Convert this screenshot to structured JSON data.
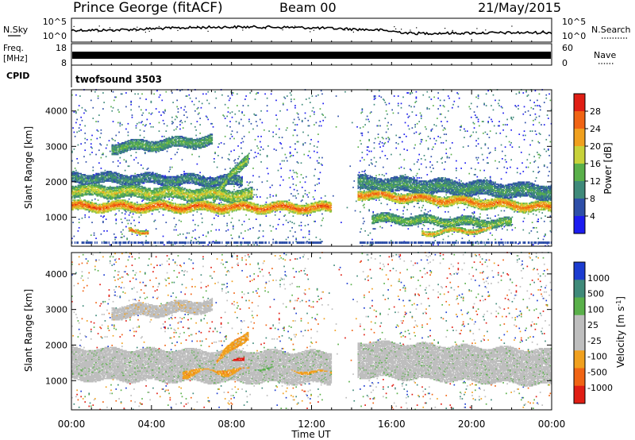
{
  "header": {
    "station": "Prince George (fitACF)",
    "beam": "Beam 00",
    "date": "21/May/2015"
  },
  "top_panels": {
    "nsky": {
      "label": "N.Sky",
      "left_ticks": [
        "10^5",
        "10^0"
      ],
      "right_ticks": [
        "10^5",
        "10^0"
      ],
      "right_label": "N.Search"
    },
    "freq": {
      "label_line1": "Freq.",
      "label_line2": "[MHz]",
      "left_ticks": [
        "18",
        "8"
      ],
      "right_ticks": [
        "60",
        "0"
      ],
      "right_label": "Nave"
    },
    "cpid": {
      "label": "CPID",
      "program": "twofsound 3503"
    }
  },
  "colors": {
    "power_scale": [
      "#1c1cf0",
      "#2e4fa8",
      "#3f8a7a",
      "#5ab04a",
      "#c8d23a",
      "#f0a01e",
      "#f06414",
      "#e01e14"
    ],
    "velocity_scale": [
      "#e01e14",
      "#f06414",
      "#f0a01e",
      "#bebebe",
      "#bebebe",
      "#5ab04a",
      "#3f8a7a",
      "#1c3cd0"
    ]
  },
  "chart_data": [
    {
      "type": "heatmap",
      "quantity": "Power",
      "ylabel": "Slant Range [km]",
      "xlabel": "Time UT",
      "xlim": [
        0,
        24
      ],
      "ylim": [
        180,
        4600
      ],
      "x_ticks": [
        "00:00",
        "04:00",
        "08:00",
        "12:00",
        "16:00",
        "20:00",
        "00:00"
      ],
      "y_ticks": [
        1000,
        2000,
        3000,
        4000
      ],
      "colorbar": {
        "label": "Power [dB]",
        "ticks": [
          4,
          8,
          12,
          16,
          20,
          24,
          28
        ],
        "range": [
          0,
          32
        ]
      },
      "bands": [
        {
          "t0": 0.0,
          "t1": 13.0,
          "center_start": 1300,
          "center_end": 1250,
          "width": 280,
          "power": 27
        },
        {
          "t0": 0.0,
          "t1": 9.0,
          "center_start": 1750,
          "center_end": 1600,
          "width": 350,
          "power": 19
        },
        {
          "t0": 0.0,
          "t1": 8.5,
          "center_start": 2100,
          "center_end": 2000,
          "width": 300,
          "power": 11
        },
        {
          "t0": 7.0,
          "t1": 8.8,
          "center_start": 1500,
          "center_end": 2700,
          "width": 300,
          "power": 17
        },
        {
          "t0": 2.0,
          "t1": 7.0,
          "center_start": 2950,
          "center_end": 3150,
          "width": 300,
          "power": 14
        },
        {
          "t0": 2.8,
          "t1": 3.8,
          "center_start": 600,
          "center_end": 600,
          "width": 120,
          "power": 27
        },
        {
          "t0": 14.3,
          "t1": 24.0,
          "center_start": 1650,
          "center_end": 1250,
          "width": 280,
          "power": 26
        },
        {
          "t0": 14.3,
          "t1": 24.0,
          "center_start": 1950,
          "center_end": 1700,
          "width": 420,
          "power": 12
        },
        {
          "t0": 15.0,
          "t1": 22.0,
          "center_start": 950,
          "center_end": 800,
          "width": 260,
          "power": 16
        },
        {
          "t0": 17.5,
          "t1": 21.0,
          "center_start": 550,
          "center_end": 650,
          "width": 150,
          "power": 23
        }
      ]
    },
    {
      "type": "heatmap",
      "quantity": "Velocity",
      "ylabel": "Slant Range [km]",
      "xlabel": "Time UT",
      "xlim": [
        0,
        24
      ],
      "ylim": [
        180,
        4600
      ],
      "x_ticks": [
        "00:00",
        "04:00",
        "08:00",
        "12:00",
        "16:00",
        "20:00",
        "00:00"
      ],
      "y_ticks": [
        1000,
        2000,
        3000,
        4000
      ],
      "colorbar": {
        "label": "Velocity [m s^-1]",
        "ticks": [
          "1000",
          "500",
          "100",
          "25",
          "-25",
          "-100",
          "-500",
          "-1000"
        ]
      },
      "bands": [
        {
          "t0": 0.0,
          "t1": 13.0,
          "center_start": 1450,
          "center_end": 1350,
          "width": 900,
          "velocity_class": 4
        },
        {
          "t0": 14.3,
          "t1": 24.0,
          "center_start": 1600,
          "center_end": 1350,
          "width": 1000,
          "velocity_class": 4
        },
        {
          "t0": 5.5,
          "t1": 9.0,
          "center_start": 1250,
          "center_end": 1300,
          "width": 350,
          "velocity_class": 2
        },
        {
          "t0": 7.2,
          "t1": 8.8,
          "center_start": 1500,
          "center_end": 2300,
          "width": 250,
          "velocity_class": 2
        },
        {
          "t0": 8.0,
          "t1": 8.6,
          "center_start": 1550,
          "center_end": 1650,
          "width": 200,
          "velocity_class": 0
        },
        {
          "t0": 9.0,
          "t1": 10.7,
          "center_start": 1350,
          "center_end": 1350,
          "width": 300,
          "velocity_class": 5
        },
        {
          "t0": 10.7,
          "t1": 13.0,
          "center_start": 1300,
          "center_end": 1200,
          "width": 200,
          "velocity_class": 2
        },
        {
          "t0": 2.0,
          "t1": 7.0,
          "center_start": 2900,
          "center_end": 3100,
          "width": 350,
          "velocity_class": 3
        }
      ]
    }
  ]
}
